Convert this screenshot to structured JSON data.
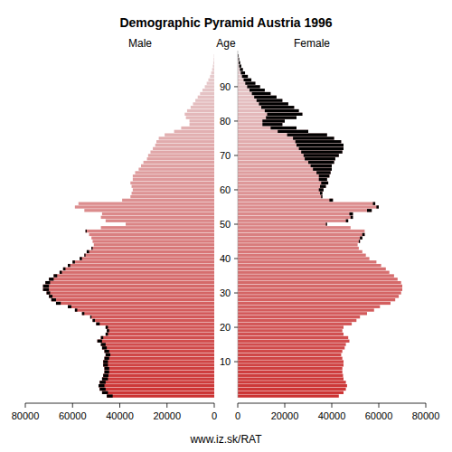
{
  "chart_data": {
    "type": "pyramid",
    "title": "Demographic Pyramid Austria 1996",
    "ylabel": "Age",
    "annotation": "www.iz.sk/RAT",
    "orientation": "horizontal",
    "x": [
      0,
      1,
      2,
      3,
      4,
      5,
      6,
      7,
      8,
      9,
      10,
      11,
      12,
      13,
      14,
      15,
      16,
      17,
      18,
      19,
      20,
      21,
      22,
      23,
      24,
      25,
      26,
      27,
      28,
      29,
      30,
      31,
      32,
      33,
      34,
      35,
      36,
      37,
      38,
      39,
      40,
      41,
      42,
      43,
      44,
      45,
      46,
      47,
      48,
      49,
      50,
      51,
      52,
      53,
      54,
      55,
      56,
      57,
      58,
      59,
      60,
      61,
      62,
      63,
      64,
      65,
      66,
      67,
      68,
      69,
      70,
      71,
      72,
      73,
      74,
      75,
      76,
      77,
      78,
      79,
      80,
      81,
      82,
      83,
      84,
      85,
      86,
      87,
      88,
      89,
      90,
      91,
      92,
      93,
      94,
      95,
      96,
      97,
      98,
      99
    ],
    "ylim": [
      -0.5,
      100.5
    ],
    "yticks": [
      10,
      20,
      30,
      40,
      50,
      60,
      70,
      80,
      90
    ],
    "xlim": [
      0,
      80000
    ],
    "xticks": [
      0,
      20000,
      40000,
      60000,
      80000
    ],
    "series": [
      {
        "name": "Male",
        "color": "#cc3333",
        "values": [
          45500,
          47500,
          48500,
          49000,
          48500,
          47500,
          47000,
          46500,
          46500,
          47000,
          47000,
          46500,
          46000,
          46500,
          47500,
          48000,
          49500,
          48000,
          46000,
          45500,
          46000,
          50000,
          51500,
          52500,
          56000,
          59000,
          62000,
          67000,
          69000,
          70000,
          71000,
          72500,
          72500,
          71500,
          70000,
          68000,
          65500,
          64000,
          62000,
          60000,
          57000,
          55000,
          54000,
          52000,
          51000,
          51500,
          52000,
          53000,
          54500,
          48000,
          37500,
          46000,
          48000,
          47500,
          55000,
          59000,
          57500,
          39000,
          35500,
          35000,
          34500,
          35000,
          35500,
          34500,
          34500,
          33500,
          32000,
          31000,
          30000,
          28500,
          28000,
          27000,
          26000,
          25000,
          24500,
          23500,
          21000,
          17000,
          14000,
          10500,
          10500,
          12000,
          12500,
          11500,
          10000,
          9000,
          8000,
          7000,
          6000,
          5000,
          4000,
          3200,
          2500,
          1800,
          1300,
          900,
          600,
          400,
          250,
          150
        ]
      },
      {
        "name": "Female",
        "color": "#cc3333",
        "values": [
          43000,
          45000,
          46000,
          46500,
          46000,
          45000,
          44800,
          44500,
          44500,
          45000,
          45000,
          44500,
          44000,
          44500,
          45500,
          46000,
          47500,
          47000,
          45000,
          44500,
          45000,
          48500,
          50500,
          52000,
          55000,
          58000,
          60500,
          65000,
          67000,
          68500,
          69500,
          70000,
          70000,
          69500,
          68000,
          66500,
          64500,
          63000,
          61000,
          59000,
          56000,
          54500,
          53000,
          51500,
          51000,
          52000,
          53000,
          54000,
          54000,
          48000,
          38000,
          47000,
          49000,
          49000,
          57000,
          60000,
          58500,
          40500,
          36000,
          36000,
          36500,
          37500,
          38500,
          38000,
          39000,
          39500,
          40000,
          40000,
          41000,
          41500,
          43000,
          44500,
          45000,
          45000,
          44000,
          41000,
          38000,
          30000,
          25000,
          19000,
          20000,
          25000,
          27500,
          26000,
          24000,
          21500,
          19000,
          16500,
          14000,
          11500,
          9500,
          7500,
          5800,
          4300,
          3100,
          2200,
          1500,
          1000,
          600,
          400
        ]
      }
    ]
  }
}
